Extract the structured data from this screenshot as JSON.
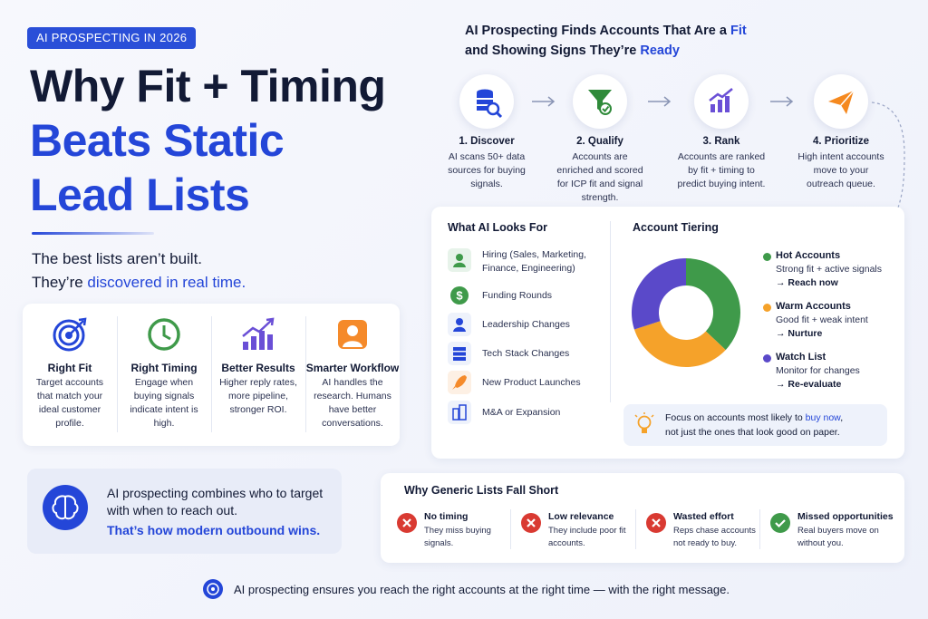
{
  "header": {
    "badge": "AI PROSPECTING IN 2026",
    "title_lines": [
      "Why Fit + Timing",
      "Beats Static",
      "Lead Lists"
    ],
    "subtitle_line1": "The best lists aren’t built.",
    "subtitle_line2": [
      "They’re ",
      "discovered in real time."
    ]
  },
  "benefits": [
    {
      "title": "Right Fit",
      "text": "Target accounts that match your ideal customer profile."
    },
    {
      "title": "Right Timing",
      "text": "Engage when buying signals indicate intent is high."
    },
    {
      "title": "Better Results",
      "text": "Higher reply rates, more pipeline, stronger ROI."
    },
    {
      "title": "Smarter Workflow",
      "text": "AI handles the research. Humans have better conversations."
    }
  ],
  "callout": {
    "text": "AI prospecting combines who to target with when to reach out.",
    "emphasis": "That’s how modern outbound wins."
  },
  "process": {
    "heading_line1": [
      "AI Prospecting Finds Accounts That Are a ",
      "Fit"
    ],
    "heading_line2": [
      "and Showing Signs They’re ",
      "Ready"
    ],
    "steps": [
      {
        "title": "1. Discover",
        "text": "AI scans 50+ data sources for buying signals."
      },
      {
        "title": "2. Qualify",
        "text": "Accounts are enriched and scored for ICP fit and signal strength."
      },
      {
        "title": "3. Rank",
        "text": "Accounts are ranked by fit + timing to predict buying intent."
      },
      {
        "title": "4. Prioritize",
        "text": "High intent accounts move to your outreach queue."
      }
    ]
  },
  "looks_for": {
    "title": "What AI Looks For",
    "items": [
      "Hiring (Sales, Marketing, Finance, Engineering)",
      "Funding Rounds",
      "Leadership Changes",
      "Tech Stack Changes",
      "New Product Launches",
      "M&A or Expansion"
    ]
  },
  "chart_data": {
    "type": "pie",
    "title": "Account Tiering",
    "categories": [
      "Hot Accounts",
      "Warm Accounts",
      "Watch List"
    ],
    "values": [
      37,
      33,
      30
    ],
    "colors": [
      "#3f9a4a",
      "#f5a22a",
      "#5a49c9"
    ],
    "descriptions": [
      "Strong fit + active signals",
      "Good fit + weak intent",
      "Monitor for changes"
    ],
    "actions": [
      "→ Reach now",
      "→ Nurture",
      "→ Re-evaluate"
    ]
  },
  "tip": {
    "line1": [
      "Focus on accounts most likely to ",
      "buy now",
      ","
    ],
    "line2": "not just the ones that look good on paper."
  },
  "generic": {
    "title": "Why Generic Lists Fall Short",
    "items": [
      {
        "title": "No timing",
        "text": "They miss buying signals."
      },
      {
        "title": "Low relevance",
        "text": "They include poor fit accounts."
      },
      {
        "title": "Wasted effort",
        "text": "Reps chase accounts not ready to buy."
      },
      {
        "title": "Missed opportunities",
        "text": "Real buyers move on without you."
      }
    ]
  },
  "footer": "AI prospecting ensures you reach the right accounts at the right time — with the right message."
}
